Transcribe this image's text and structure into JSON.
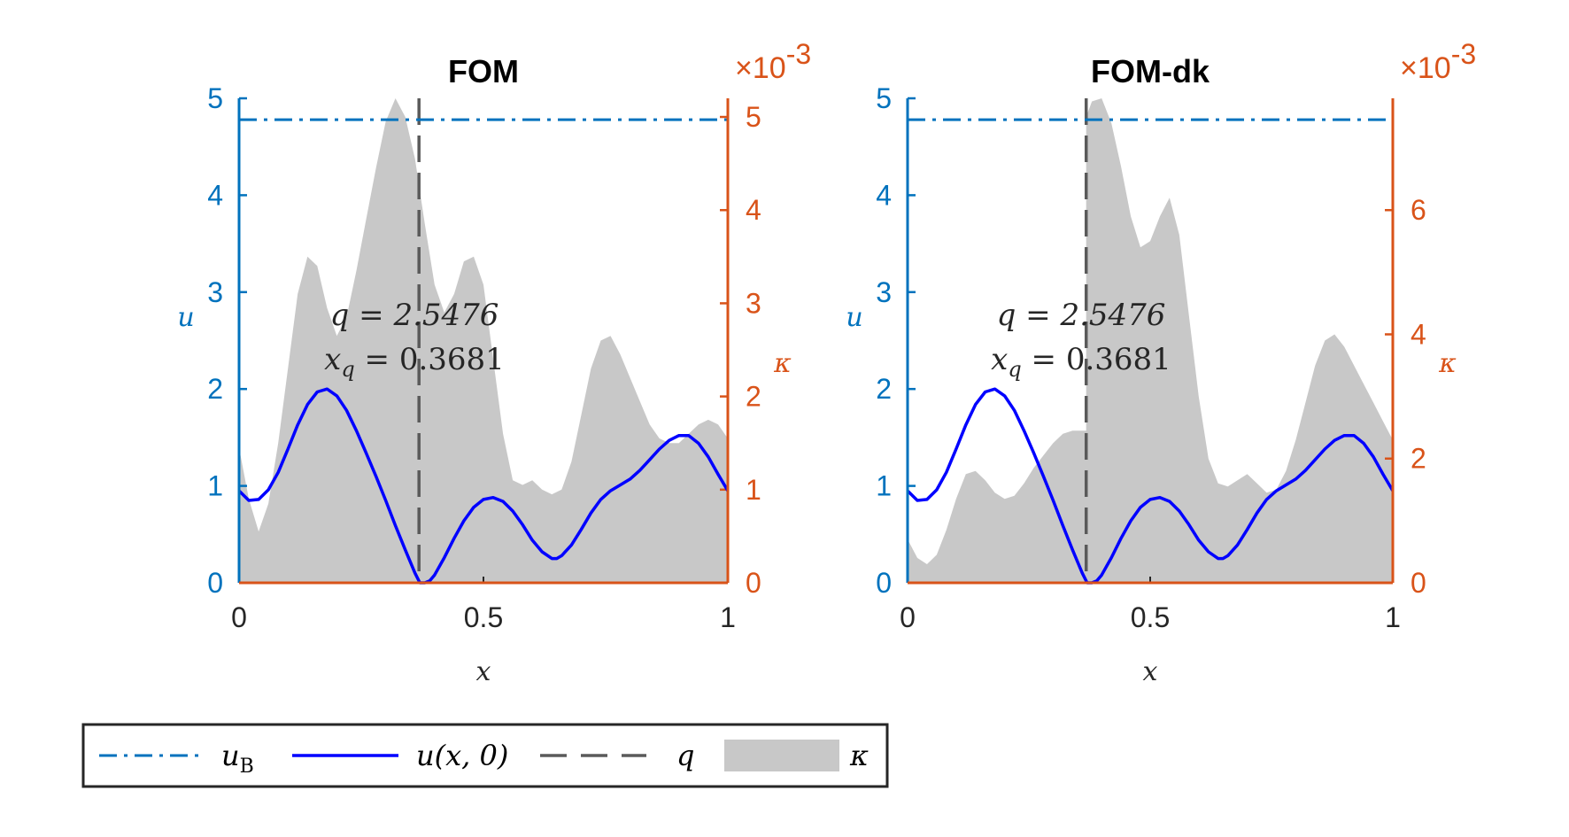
{
  "colors": {
    "left_axis": "#0072BD",
    "right_axis": "#D95319",
    "u_line": "#0000FF",
    "q_line": "#5A5A5A",
    "kappa_fill": "#C8C8C8",
    "ink": "#000000"
  },
  "legend": {
    "placement": "bottom-left",
    "entries": [
      {
        "key": "uB",
        "label": "u",
        "sub": "B",
        "style": "dash-dot",
        "color": "#0072BD"
      },
      {
        "key": "u",
        "label": "u(x, 0)",
        "style": "solid",
        "color": "#0000FF"
      },
      {
        "key": "q",
        "label": "q",
        "style": "dashed",
        "color": "#5A5A5A"
      },
      {
        "key": "kappa",
        "label": "κ",
        "style": "fill",
        "color": "#C8C8C8"
      }
    ]
  },
  "chart_data": [
    {
      "type": "area",
      "title": "FOM",
      "xlabel": "x",
      "ylabel_left": "u",
      "ylabel_right": "κ",
      "right_multiplier": "×10",
      "right_exponent": "-3",
      "xlim": [
        0,
        1
      ],
      "ylim_left": [
        0,
        5
      ],
      "ylim_right": [
        0,
        5.2
      ],
      "xticks": [
        "0",
        "0.5",
        "1"
      ],
      "yticks_left": [
        "0",
        "1",
        "2",
        "3",
        "4",
        "5"
      ],
      "yticks_right": [
        "0",
        "1",
        "2",
        "3",
        "4",
        "5"
      ],
      "xtick_values": [
        0,
        0.5,
        1
      ],
      "yticks_left_values": [
        0,
        1,
        2,
        3,
        4,
        5
      ],
      "yticks_right_values": [
        0,
        1,
        2,
        3,
        4,
        5
      ],
      "u_B": 4.78,
      "q_x": 0.3681,
      "annotation_q": "q = 2.5476",
      "annotation_xq": "x",
      "annotation_xq_sub": "q",
      "annotation_xq_value": " = 0.3681",
      "series": [
        {
          "name": "u(x,0)",
          "x": [
            0,
            0.02,
            0.04,
            0.06,
            0.08,
            0.1,
            0.12,
            0.14,
            0.16,
            0.18,
            0.2,
            0.22,
            0.24,
            0.26,
            0.28,
            0.3,
            0.32,
            0.34,
            0.36,
            0.37,
            0.38,
            0.39,
            0.4,
            0.42,
            0.44,
            0.46,
            0.48,
            0.5,
            0.52,
            0.54,
            0.56,
            0.58,
            0.6,
            0.62,
            0.64,
            0.65,
            0.66,
            0.68,
            0.7,
            0.72,
            0.74,
            0.76,
            0.78,
            0.8,
            0.82,
            0.84,
            0.86,
            0.88,
            0.9,
            0.92,
            0.94,
            0.96,
            0.98,
            1.0
          ],
          "y": [
            0.95,
            0.85,
            0.86,
            0.96,
            1.14,
            1.38,
            1.63,
            1.84,
            1.97,
            2.0,
            1.93,
            1.78,
            1.57,
            1.34,
            1.1,
            0.85,
            0.59,
            0.34,
            0.1,
            0.0,
            0.0,
            0.02,
            0.08,
            0.26,
            0.46,
            0.64,
            0.78,
            0.86,
            0.88,
            0.84,
            0.74,
            0.6,
            0.44,
            0.32,
            0.25,
            0.25,
            0.28,
            0.39,
            0.55,
            0.72,
            0.86,
            0.95,
            1.01,
            1.07,
            1.16,
            1.27,
            1.38,
            1.47,
            1.52,
            1.52,
            1.44,
            1.3,
            1.12,
            0.95
          ]
        },
        {
          "name": "κ",
          "x": [
            0,
            0.02,
            0.04,
            0.06,
            0.08,
            0.1,
            0.12,
            0.14,
            0.16,
            0.18,
            0.2,
            0.22,
            0.24,
            0.26,
            0.28,
            0.3,
            0.32,
            0.34,
            0.36,
            0.38,
            0.4,
            0.42,
            0.44,
            0.46,
            0.48,
            0.5,
            0.52,
            0.54,
            0.56,
            0.58,
            0.6,
            0.62,
            0.64,
            0.66,
            0.68,
            0.7,
            0.72,
            0.74,
            0.76,
            0.78,
            0.8,
            0.82,
            0.84,
            0.86,
            0.88,
            0.9,
            0.92,
            0.94,
            0.96,
            0.98,
            1.0
          ],
          "y": [
            1.45,
            0.9,
            0.55,
            0.85,
            1.5,
            2.3,
            3.1,
            3.5,
            3.4,
            2.95,
            2.65,
            2.85,
            3.35,
            3.9,
            4.45,
            4.95,
            5.2,
            5.0,
            4.55,
            3.85,
            3.2,
            2.9,
            3.1,
            3.45,
            3.5,
            3.2,
            2.4,
            1.6,
            1.1,
            1.05,
            1.1,
            1.0,
            0.95,
            1.0,
            1.3,
            1.8,
            2.3,
            2.6,
            2.65,
            2.45,
            2.2,
            1.95,
            1.7,
            1.55,
            1.5,
            1.5,
            1.6,
            1.7,
            1.75,
            1.7,
            1.55
          ]
        }
      ]
    },
    {
      "type": "area",
      "title": "FOM-dk",
      "xlabel": "x",
      "ylabel_left": "u",
      "ylabel_right": "κ",
      "right_multiplier": "×10",
      "right_exponent": "-3",
      "xlim": [
        0,
        1
      ],
      "ylim_left": [
        0,
        5
      ],
      "ylim_right": [
        0,
        7.8
      ],
      "xticks": [
        "0",
        "0.5",
        "1"
      ],
      "yticks_left": [
        "0",
        "1",
        "2",
        "3",
        "4",
        "5"
      ],
      "yticks_right": [
        "0",
        "2",
        "4",
        "6"
      ],
      "xtick_values": [
        0,
        0.5,
        1
      ],
      "yticks_left_values": [
        0,
        1,
        2,
        3,
        4,
        5
      ],
      "yticks_right_values": [
        0,
        2,
        4,
        6
      ],
      "u_B": 4.78,
      "q_x": 0.3681,
      "annotation_q": "q = 2.5476",
      "annotation_xq": "x",
      "annotation_xq_sub": "q",
      "annotation_xq_value": " = 0.3681",
      "series": [
        {
          "name": "u(x,0)",
          "x": [
            0,
            0.02,
            0.04,
            0.06,
            0.08,
            0.1,
            0.12,
            0.14,
            0.16,
            0.18,
            0.2,
            0.22,
            0.24,
            0.26,
            0.28,
            0.3,
            0.32,
            0.34,
            0.36,
            0.37,
            0.38,
            0.39,
            0.4,
            0.42,
            0.44,
            0.46,
            0.48,
            0.5,
            0.52,
            0.54,
            0.56,
            0.58,
            0.6,
            0.62,
            0.64,
            0.65,
            0.66,
            0.68,
            0.7,
            0.72,
            0.74,
            0.76,
            0.78,
            0.8,
            0.82,
            0.84,
            0.86,
            0.88,
            0.9,
            0.92,
            0.94,
            0.96,
            0.98,
            1.0
          ],
          "y": [
            0.95,
            0.85,
            0.86,
            0.96,
            1.14,
            1.38,
            1.63,
            1.84,
            1.97,
            2.0,
            1.93,
            1.78,
            1.57,
            1.34,
            1.1,
            0.85,
            0.59,
            0.34,
            0.1,
            0.0,
            0.0,
            0.02,
            0.08,
            0.26,
            0.46,
            0.64,
            0.78,
            0.86,
            0.88,
            0.84,
            0.74,
            0.6,
            0.44,
            0.32,
            0.25,
            0.25,
            0.28,
            0.39,
            0.55,
            0.72,
            0.86,
            0.95,
            1.01,
            1.07,
            1.16,
            1.27,
            1.38,
            1.47,
            1.52,
            1.52,
            1.44,
            1.3,
            1.12,
            0.95
          ]
        },
        {
          "name": "κ",
          "x": [
            0,
            0.02,
            0.04,
            0.06,
            0.08,
            0.1,
            0.12,
            0.14,
            0.16,
            0.18,
            0.2,
            0.22,
            0.24,
            0.26,
            0.28,
            0.3,
            0.32,
            0.34,
            0.36,
            0.3681,
            0.3681,
            0.38,
            0.4,
            0.42,
            0.44,
            0.46,
            0.48,
            0.5,
            0.52,
            0.54,
            0.56,
            0.58,
            0.6,
            0.62,
            0.64,
            0.66,
            0.68,
            0.7,
            0.72,
            0.74,
            0.76,
            0.78,
            0.8,
            0.82,
            0.84,
            0.86,
            0.88,
            0.9,
            0.92,
            0.94,
            0.96,
            0.98,
            1.0
          ],
          "y": [
            0.7,
            0.4,
            0.3,
            0.45,
            0.85,
            1.35,
            1.75,
            1.8,
            1.65,
            1.45,
            1.35,
            1.4,
            1.6,
            1.85,
            2.05,
            2.25,
            2.4,
            2.45,
            2.45,
            2.45,
            7.5,
            7.75,
            7.8,
            7.4,
            6.7,
            5.9,
            5.4,
            5.5,
            5.9,
            6.2,
            5.6,
            4.3,
            3.0,
            2.0,
            1.6,
            1.55,
            1.65,
            1.75,
            1.6,
            1.45,
            1.5,
            1.8,
            2.3,
            2.9,
            3.5,
            3.9,
            4.0,
            3.8,
            3.5,
            3.2,
            2.9,
            2.6,
            2.3
          ]
        }
      ]
    }
  ]
}
